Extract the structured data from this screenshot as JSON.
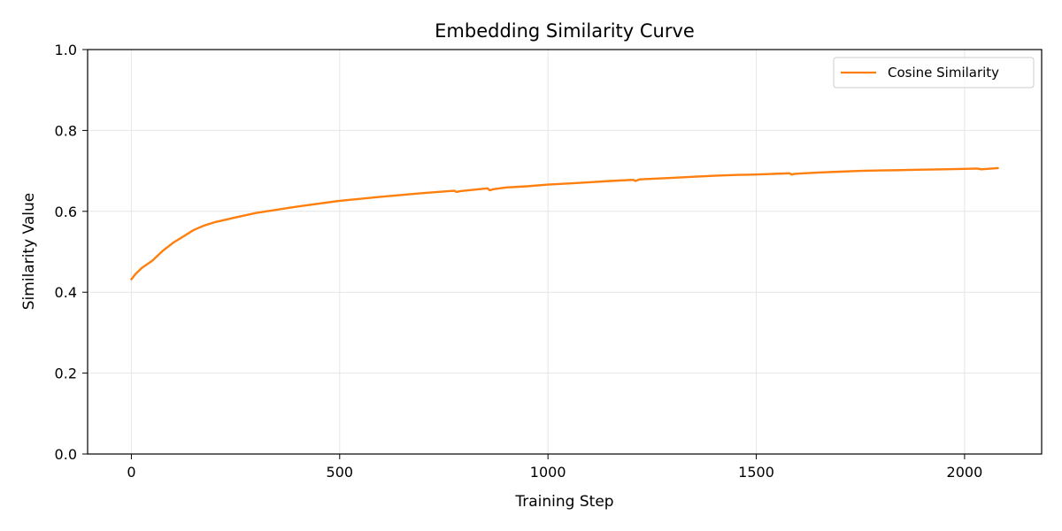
{
  "chart_data": {
    "type": "line",
    "title": "Embedding Similarity Curve",
    "xlabel": "Training Step",
    "ylabel": "Similarity Value",
    "xlim": [
      -105,
      2185
    ],
    "ylim": [
      0.0,
      1.0
    ],
    "xticks": [
      0,
      500,
      1000,
      1500,
      2000
    ],
    "xtick_labels": [
      "0",
      "500",
      "1000",
      "1500",
      "2000"
    ],
    "yticks": [
      0.0,
      0.2,
      0.4,
      0.6,
      0.8,
      1.0
    ],
    "ytick_labels": [
      "0.0",
      "0.2",
      "0.4",
      "0.6",
      "0.8",
      "1.0"
    ],
    "grid": true,
    "legend_position": "top-right",
    "series": [
      {
        "name": "Cosine Similarity",
        "color": "#ff7f0e",
        "x": [
          0,
          10,
          25,
          50,
          75,
          100,
          125,
          150,
          175,
          200,
          250,
          300,
          400,
          500,
          600,
          700,
          775,
          780,
          790,
          855,
          860,
          870,
          900,
          950,
          1000,
          1050,
          1100,
          1150,
          1205,
          1210,
          1220,
          1300,
          1400,
          1450,
          1500,
          1580,
          1585,
          1595,
          1650,
          1700,
          1750,
          1800,
          1850,
          1900,
          1950,
          2000,
          2030,
          2040,
          2080
        ],
        "values": [
          0.432,
          0.445,
          0.46,
          0.478,
          0.502,
          0.522,
          0.538,
          0.554,
          0.565,
          0.573,
          0.585,
          0.596,
          0.612,
          0.626,
          0.636,
          0.645,
          0.651,
          0.648,
          0.65,
          0.657,
          0.652,
          0.655,
          0.659,
          0.662,
          0.666,
          0.669,
          0.672,
          0.675,
          0.678,
          0.675,
          0.679,
          0.683,
          0.688,
          0.69,
          0.691,
          0.694,
          0.691,
          0.693,
          0.696,
          0.698,
          0.7,
          0.701,
          0.702,
          0.703,
          0.704,
          0.705,
          0.706,
          0.704,
          0.707
        ]
      }
    ]
  }
}
